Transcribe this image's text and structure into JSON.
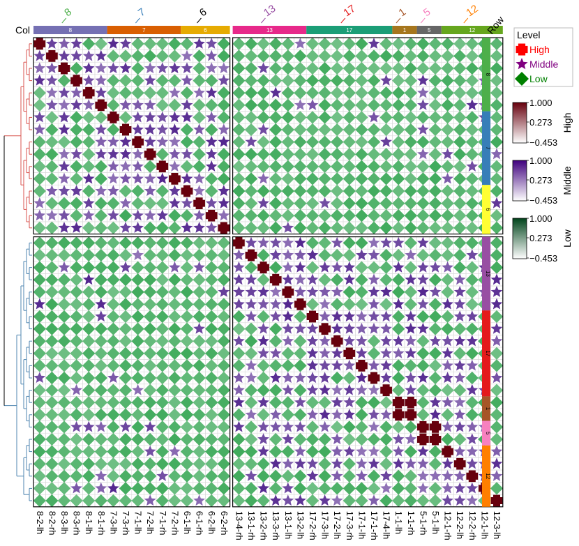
{
  "chart_data": {
    "type": "heatmap",
    "col_label": "Col",
    "row_label": "Row",
    "labels": [
      "8-2-lh",
      "8-2-rh",
      "8-3-lh",
      "8-3-rh",
      "8-1-lh",
      "8-1-rh",
      "7-3-lh",
      "7-3-rh",
      "7-1-lh",
      "7-2-lh",
      "7-1-rh",
      "7-2-rh",
      "6-1-lh",
      "6-1-rh",
      "6-2-lh",
      "6-2-rh",
      "13-4-rh",
      "13-1-rh",
      "13-2-rh",
      "13-3-rh",
      "13-1-lh",
      "13-2-lh",
      "17-2-rh",
      "17-3-lh",
      "17-2-lh",
      "17-3-rh",
      "17-1-lh",
      "17-1-rh",
      "17-4-lh",
      "1-1-lh",
      "1-1-rh",
      "5-1-rh",
      "5-1-lh",
      "12-1-rh",
      "12-2-lh",
      "12-2-rh",
      "12-1-lh",
      "12-3-lh"
    ],
    "groups": [
      {
        "name": "8",
        "size": 6,
        "color": "#4daf4a",
        "col_color": "#7570b3",
        "title_color": "#4daf4a"
      },
      {
        "name": "7",
        "size": 6,
        "color": "#377eb8",
        "col_color": "#d95f02",
        "title_color": "#377eb8"
      },
      {
        "name": "6",
        "size": 4,
        "color": "#ffff33",
        "col_color": "#e6ab02",
        "title_color": "#000000"
      },
      {
        "name": "13",
        "size": 6,
        "color": "#984ea3",
        "col_color": "#e7298a",
        "title_color": "#984ea3"
      },
      {
        "name": "17",
        "size": 7,
        "color": "#e41a1c",
        "col_color": "#1b9e77",
        "title_color": "#e41a1c"
      },
      {
        "name": "1",
        "size": 2,
        "color": "#a65628",
        "col_color": "#a6761d",
        "title_color": "#a65628"
      },
      {
        "name": "5",
        "size": 2,
        "color": "#f781bf",
        "col_color": "#666666",
        "title_color": "#f781bf"
      },
      {
        "name": "12",
        "size": 5,
        "color": "#ff7f00",
        "col_color": "#66a61e",
        "title_color": "#ff7f00"
      }
    ],
    "levels": [
      {
        "name": "High",
        "symbol": "cross",
        "color": "#ff0000"
      },
      {
        "name": "Middle",
        "symbol": "star",
        "color": "#800080"
      },
      {
        "name": "Low",
        "symbol": "diamond",
        "color": "#008000"
      }
    ],
    "legend_title": "Level",
    "color_scales": [
      {
        "name": "High",
        "min": -0.453,
        "mid": 0.273,
        "max": 1.0,
        "low_color": "#ffffff",
        "high_color": "#67000d",
        "tick_labels": [
          "1.000",
          "0.273",
          "−0.453"
        ]
      },
      {
        "name": "Middle",
        "min": -0.453,
        "mid": 0.273,
        "max": 1.0,
        "low_color": "#ffffff",
        "high_color": "#3f007d",
        "tick_labels": [
          "1.000",
          "0.273",
          "−0.453"
        ]
      },
      {
        "name": "Low",
        "min": -0.453,
        "mid": 0.273,
        "max": 1.0,
        "low_color": "#ffffff",
        "high_color": "#00441b",
        "tick_labels": [
          "1.000",
          "0.273",
          "−0.453"
        ]
      }
    ],
    "value_range": [
      -0.453,
      1.0
    ],
    "diagonal_value": 1.0,
    "row_dendrogram_split": [
      "red",
      "blue"
    ],
    "legend_position": "right",
    "grid": true
  },
  "colors": {
    "dendro_top": "#d9534f",
    "dendro_bottom": "#4f86b0",
    "grid": "#d8d8d8",
    "cross": "#67000d",
    "star": "#54278f",
    "diamond": "#41ab5d"
  }
}
